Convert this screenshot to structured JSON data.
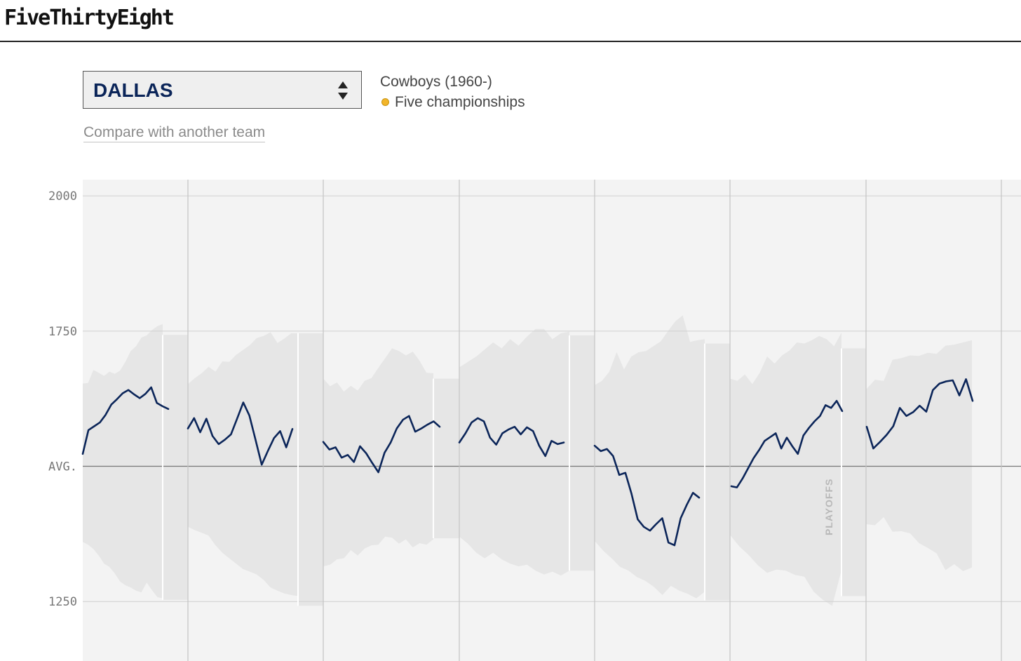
{
  "header": {
    "logo": "FiveThirtyEight"
  },
  "team_selector": {
    "selected": "DALLAS"
  },
  "team_info": {
    "name": "Cowboys (1960-)",
    "championships": "Five championships"
  },
  "compare_link": "Compare with another team",
  "colors": {
    "line": "#0b2559",
    "band": "#e6e6e6",
    "plot_bg": "#f3f3f3",
    "championship_dot": "#f2b52a"
  },
  "chart_data": {
    "type": "line",
    "title": "",
    "xlabel": "",
    "ylabel": "",
    "ylim": [
      1140,
      2030
    ],
    "y_ticks": [
      {
        "value": 2000,
        "label": "2000"
      },
      {
        "value": 1750,
        "label": "1750"
      },
      {
        "value": 1500,
        "label": "AVG."
      },
      {
        "value": 1250,
        "label": "1250"
      }
    ],
    "grid": true,
    "annotations": [
      "PLAYOFFS"
    ],
    "seasons": [
      {
        "elo": [
          1523,
          1567,
          1574,
          1581,
          1595,
          1614,
          1624,
          1635,
          1641,
          1633,
          1626,
          1634,
          1646,
          1617,
          1611,
          1606
        ],
        "band_top": [
          1653,
          1654,
          1678,
          1673,
          1667,
          1675,
          1671,
          1677,
          1693,
          1713,
          1722,
          1738,
          1742,
          1752,
          1759,
          1763
        ],
        "band_bottom": [
          1360,
          1355,
          1347,
          1335,
          1320,
          1314,
          1302,
          1287,
          1280,
          1276,
          1270,
          1267,
          1285,
          1271,
          1258,
          1256
        ],
        "playoff_band_top": 1743,
        "playoff_band_bottom": 1253
      },
      {
        "elo": [
          1570,
          1589,
          1563,
          1588,
          1556,
          1541,
          1549,
          1559,
          1588,
          1618,
          1594,
          1549,
          1503,
          1528,
          1552,
          1565,
          1535,
          1569
        ],
        "band_top": [
          1652,
          1663,
          1672,
          1684,
          1675,
          1694,
          1693,
          1706,
          1715,
          1724,
          1737,
          1741,
          1748,
          1728,
          1736,
          1746,
          1746
        ],
        "band_bottom": [
          1388,
          1382,
          1377,
          1372,
          1354,
          1340,
          1330,
          1320,
          1310,
          1305,
          1300,
          1290,
          1276,
          1270,
          1265,
          1262,
          1260
        ],
        "playoff_band_top": 1746,
        "playoff_band_bottom": 1242
      },
      {
        "elo": [
          1545,
          1531,
          1535,
          1516,
          1521,
          1508,
          1537,
          1524,
          1506,
          1489,
          1525,
          1544,
          1570,
          1586,
          1593,
          1564,
          1570,
          1577,
          1583,
          1573
        ],
        "band_top": [
          1662,
          1648,
          1655,
          1638,
          1649,
          1640,
          1658,
          1663,
          1682,
          1700,
          1718,
          1713,
          1705,
          1712,
          1695,
          1673,
          1672
        ],
        "band_bottom": [
          1315,
          1318,
          1328,
          1330,
          1345,
          1335,
          1348,
          1354,
          1355,
          1370,
          1368,
          1357,
          1365,
          1350,
          1358,
          1355,
          1365
        ],
        "playoff_band_top": 1662,
        "playoff_band_bottom": 1367
      },
      {
        "elo": [
          1544,
          1561,
          1581,
          1589,
          1583,
          1553,
          1540,
          1561,
          1568,
          1573,
          1559,
          1572,
          1565,
          1538,
          1519,
          1547,
          1541,
          1544
        ],
        "band_top": [
          1683,
          1693,
          1703,
          1716,
          1729,
          1718,
          1735,
          1723,
          1740,
          1754,
          1754,
          1735,
          1746,
          1749
        ],
        "band_bottom": [
          1370,
          1357,
          1340,
          1330,
          1340,
          1328,
          1320,
          1315,
          1318,
          1307,
          1300,
          1305,
          1298,
          1307
        ],
        "playoff_band_top": 1742,
        "playoff_band_bottom": 1307
      },
      {
        "elo": [
          1538,
          1528,
          1532,
          1519,
          1484,
          1488,
          1449,
          1402,
          1388,
          1381,
          1393,
          1404,
          1359,
          1354,
          1404,
          1429,
          1451,
          1442
        ],
        "band_top": [
          1650,
          1658,
          1675,
          1711,
          1679,
          1703,
          1711,
          1713,
          1722,
          1731,
          1750,
          1768,
          1779,
          1730,
          1733,
          1735
        ],
        "band_bottom": [
          1362,
          1344,
          1330,
          1314,
          1307,
          1295,
          1288,
          1277,
          1262,
          1279,
          1270,
          1264,
          1256,
          1268
        ],
        "playoff_band_top": 1727,
        "playoff_band_bottom": 1252
      },
      {
        "elo": [
          1463,
          1461,
          1477,
          1496,
          1515,
          1530,
          1547,
          1554,
          1561,
          1533,
          1553,
          1537,
          1523,
          1557,
          1571,
          1583,
          1593,
          1613,
          1608,
          1621,
          1602
        ],
        "band_top": [
          1662,
          1658,
          1670,
          1652,
          1673,
          1703,
          1690,
          1705,
          1714,
          1729,
          1727,
          1733,
          1741,
          1735,
          1722,
          1747
        ],
        "band_bottom": [
          1373,
          1352,
          1336,
          1317,
          1303,
          1309,
          1307,
          1299,
          1296,
          1268,
          1253,
          1242,
          1308
        ],
        "playoff_band_top": 1718,
        "playoff_band_bottom": 1260
      },
      {
        "elo": [
          1573,
          1533,
          1545,
          1558,
          1574,
          1608,
          1593,
          1600,
          1612,
          1601,
          1641,
          1653,
          1657,
          1659,
          1631,
          1661,
          1621
        ],
        "band_top": [
          1642,
          1660,
          1658,
          1697,
          1700,
          1705,
          1704,
          1710,
          1708,
          1723,
          1725,
          1729,
          1733
        ],
        "band_bottom": [
          1393,
          1391,
          1406,
          1379,
          1380,
          1376,
          1358,
          1349,
          1339,
          1308,
          1319,
          1306,
          1313
        ]
      }
    ]
  }
}
